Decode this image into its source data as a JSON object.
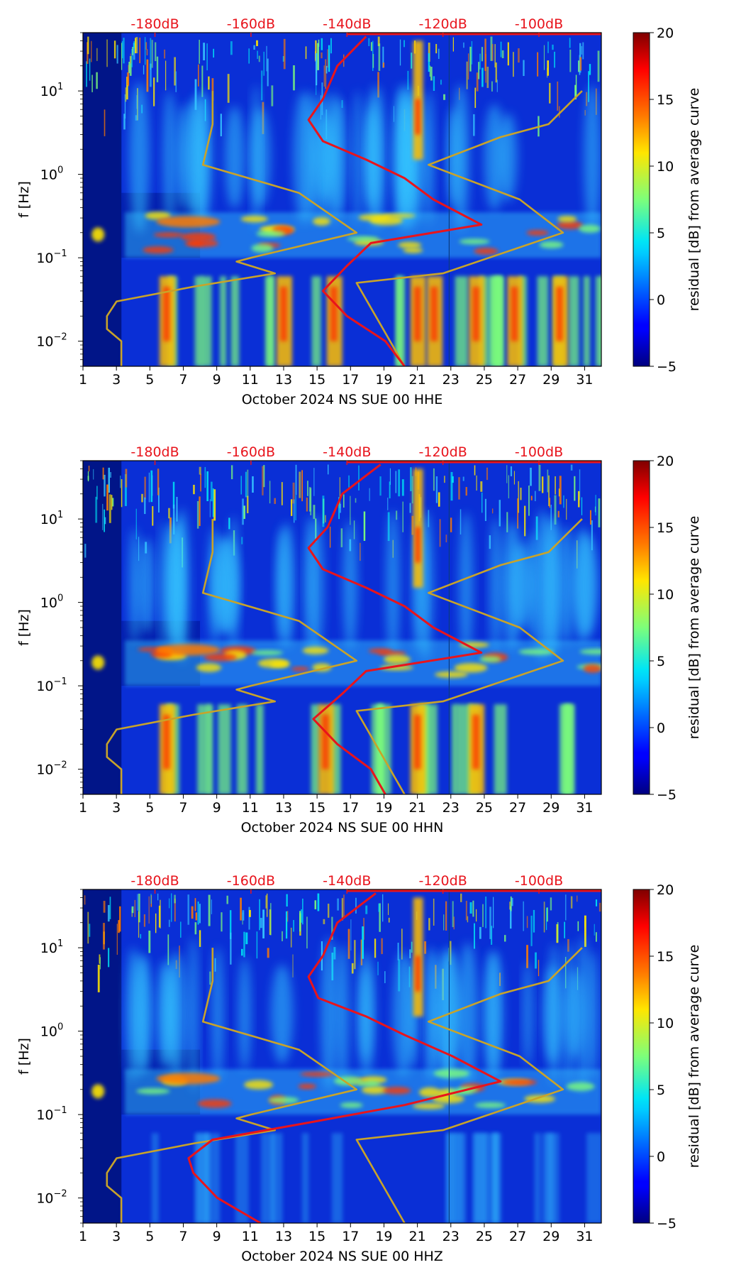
{
  "chart_data": [
    {
      "type": "heatmap",
      "description_label": "October 2024 NS SUE 00 HHE",
      "xlabel": "October 2024 NS SUE 00 HHE",
      "ylabel": "f [Hz]",
      "x_ticks": [
        "1",
        "3",
        "5",
        "7",
        "9",
        "11",
        "13",
        "15",
        "17",
        "19",
        "21",
        "23",
        "25",
        "27",
        "29",
        "31"
      ],
      "x_range": [
        1,
        32
      ],
      "y_scale": "log",
      "y_range_hz": [
        0.005,
        50
      ],
      "y_ticks": [
        {
          "base": "10",
          "exp": "1"
        },
        {
          "base": "10",
          "exp": "0"
        },
        {
          "base": "10",
          "exp": "−1"
        },
        {
          "base": "10",
          "exp": "−2"
        }
      ],
      "db_ticks": [
        "-180dB",
        "-160dB",
        "-140dB",
        "-120dB",
        "-100dB"
      ],
      "colorbar": {
        "label": "residual [dB] from average curve",
        "ticks": [
          "20",
          "15",
          "10",
          "5",
          "0",
          "−5"
        ],
        "range": [
          -5,
          20
        ],
        "colormap": "jet"
      },
      "ppsd_curve": {
        "color": "#e8141c",
        "db_vs_freq": [
          [
            -136,
            45
          ],
          [
            -142,
            20
          ],
          [
            -145,
            8
          ],
          [
            -148,
            4.5
          ],
          [
            -145,
            2.5
          ],
          [
            -136,
            1.5
          ],
          [
            -128,
            0.9
          ],
          [
            -122,
            0.5
          ],
          [
            -112,
            0.25
          ],
          [
            -135,
            0.15
          ],
          [
            -140,
            0.08
          ],
          [
            -145,
            0.04
          ],
          [
            -140,
            0.02
          ],
          [
            -132,
            0.01
          ],
          [
            -128,
            0.005
          ]
        ]
      },
      "noise_model_curves": {
        "color": "#c8a32a",
        "low": [
          [
            -168,
            10
          ],
          [
            -168,
            4
          ],
          [
            -170,
            1.3
          ],
          [
            -150,
            0.6
          ],
          [
            -138,
            0.2
          ],
          [
            -160,
            0.1
          ],
          [
            -163,
            0.09
          ],
          [
            -155,
            0.065
          ],
          [
            -172,
            0.045
          ],
          [
            -188,
            0.03
          ],
          [
            -190,
            0.02
          ],
          [
            -190,
            0.014
          ],
          [
            -187,
            0.01
          ],
          [
            -187,
            0.005
          ]
        ],
        "high": [
          [
            -91,
            10
          ],
          [
            -98,
            4
          ],
          [
            -108,
            2.8
          ],
          [
            -123,
            1.3
          ],
          [
            -104,
            0.5
          ],
          [
            -95,
            0.2
          ],
          [
            -120,
            0.065
          ],
          [
            -138,
            0.05
          ],
          [
            -128,
            0.005
          ]
        ]
      },
      "hot_columns_low_freq": [
        6,
        13,
        16,
        21,
        22,
        24.5,
        26.8,
        29.5
      ],
      "hot_columns_high_freq": [
        21
      ],
      "microseism_band_hz": [
        0.1,
        0.35
      ]
    },
    {
      "type": "heatmap",
      "description_label": "October 2024 NS SUE 00 HHN",
      "xlabel": "October 2024 NS SUE 00 HHN",
      "ylabel": "f [Hz]",
      "x_ticks": [
        "1",
        "3",
        "5",
        "7",
        "9",
        "11",
        "13",
        "15",
        "17",
        "19",
        "21",
        "23",
        "25",
        "27",
        "29",
        "31"
      ],
      "x_range": [
        1,
        32
      ],
      "y_scale": "log",
      "y_range_hz": [
        0.005,
        50
      ],
      "y_ticks": [
        {
          "base": "10",
          "exp": "1"
        },
        {
          "base": "10",
          "exp": "0"
        },
        {
          "base": "10",
          "exp": "−1"
        },
        {
          "base": "10",
          "exp": "−2"
        }
      ],
      "db_ticks": [
        "-180dB",
        "-160dB",
        "-140dB",
        "-120dB",
        "-100dB"
      ],
      "colorbar": {
        "label": "residual [dB] from average curve",
        "ticks": [
          "20",
          "15",
          "10",
          "5",
          "0",
          "−5"
        ],
        "range": [
          -5,
          20
        ],
        "colormap": "jet"
      },
      "ppsd_curve": {
        "color": "#e8141c",
        "db_vs_freq": [
          [
            -133,
            45
          ],
          [
            -141,
            20
          ],
          [
            -144,
            8
          ],
          [
            -148,
            4.5
          ],
          [
            -145,
            2.5
          ],
          [
            -136,
            1.5
          ],
          [
            -128,
            0.9
          ],
          [
            -122,
            0.5
          ],
          [
            -112,
            0.25
          ],
          [
            -136,
            0.15
          ],
          [
            -141,
            0.08
          ],
          [
            -147,
            0.04
          ],
          [
            -142,
            0.02
          ],
          [
            -135,
            0.01
          ],
          [
            -132,
            0.005
          ]
        ]
      },
      "noise_model_curves": {
        "color": "#c8a32a",
        "low": [
          [
            -168,
            10
          ],
          [
            -168,
            4
          ],
          [
            -170,
            1.3
          ],
          [
            -150,
            0.6
          ],
          [
            -138,
            0.2
          ],
          [
            -160,
            0.1
          ],
          [
            -163,
            0.09
          ],
          [
            -155,
            0.065
          ],
          [
            -172,
            0.045
          ],
          [
            -188,
            0.03
          ],
          [
            -190,
            0.02
          ],
          [
            -190,
            0.014
          ],
          [
            -187,
            0.01
          ],
          [
            -187,
            0.005
          ]
        ],
        "high": [
          [
            -91,
            10
          ],
          [
            -98,
            4
          ],
          [
            -108,
            2.8
          ],
          [
            -123,
            1.3
          ],
          [
            -104,
            0.5
          ],
          [
            -95,
            0.2
          ],
          [
            -120,
            0.065
          ],
          [
            -138,
            0.05
          ],
          [
            -128,
            0.005
          ]
        ]
      },
      "hot_columns_low_freq": [
        6,
        15.5,
        21,
        24.5
      ],
      "hot_columns_high_freq": [
        21
      ],
      "microseism_band_hz": [
        0.1,
        0.35
      ]
    },
    {
      "type": "heatmap",
      "description_label": "October 2024 NS SUE 00 HHZ",
      "xlabel": "October 2024 NS SUE 00 HHZ",
      "ylabel": "f [Hz]",
      "x_ticks": [
        "1",
        "3",
        "5",
        "7",
        "9",
        "11",
        "13",
        "15",
        "17",
        "19",
        "21",
        "23",
        "25",
        "27",
        "29",
        "31"
      ],
      "x_range": [
        1,
        32
      ],
      "y_scale": "log",
      "y_range_hz": [
        0.005,
        50
      ],
      "y_ticks": [
        {
          "base": "10",
          "exp": "1"
        },
        {
          "base": "10",
          "exp": "0"
        },
        {
          "base": "10",
          "exp": "−1"
        },
        {
          "base": "10",
          "exp": "−2"
        }
      ],
      "db_ticks": [
        "-180dB",
        "-160dB",
        "-140dB",
        "-120dB",
        "-100dB"
      ],
      "colorbar": {
        "label": "residual [dB] from average curve",
        "ticks": [
          "20",
          "15",
          "10",
          "5",
          "0",
          "−5"
        ],
        "range": [
          -5,
          20
        ],
        "colormap": "jet"
      },
      "ppsd_curve": {
        "color": "#e8141c",
        "db_vs_freq": [
          [
            -134,
            45
          ],
          [
            -142,
            20
          ],
          [
            -145,
            8
          ],
          [
            -148,
            4.5
          ],
          [
            -146,
            2.5
          ],
          [
            -136,
            1.5
          ],
          [
            -128,
            0.9
          ],
          [
            -118,
            0.5
          ],
          [
            -108,
            0.25
          ],
          [
            -128,
            0.13
          ],
          [
            -148,
            0.08
          ],
          [
            -168,
            0.05
          ],
          [
            -173,
            0.03
          ],
          [
            -172,
            0.02
          ],
          [
            -167,
            0.01
          ],
          [
            -158,
            0.005
          ]
        ]
      },
      "noise_model_curves": {
        "color": "#c8a32a",
        "low": [
          [
            -168,
            10
          ],
          [
            -168,
            4
          ],
          [
            -170,
            1.3
          ],
          [
            -150,
            0.6
          ],
          [
            -138,
            0.2
          ],
          [
            -160,
            0.1
          ],
          [
            -163,
            0.09
          ],
          [
            -155,
            0.065
          ],
          [
            -172,
            0.045
          ],
          [
            -188,
            0.03
          ],
          [
            -190,
            0.02
          ],
          [
            -190,
            0.014
          ],
          [
            -187,
            0.01
          ],
          [
            -187,
            0.005
          ]
        ],
        "high": [
          [
            -91,
            10
          ],
          [
            -98,
            4
          ],
          [
            -108,
            2.8
          ],
          [
            -123,
            1.3
          ],
          [
            -104,
            0.5
          ],
          [
            -95,
            0.2
          ],
          [
            -120,
            0.065
          ],
          [
            -138,
            0.05
          ],
          [
            -128,
            0.005
          ]
        ]
      },
      "hot_columns_low_freq": [],
      "hot_columns_high_freq": [
        21
      ],
      "microseism_band_hz": [
        0.1,
        0.35
      ]
    }
  ]
}
